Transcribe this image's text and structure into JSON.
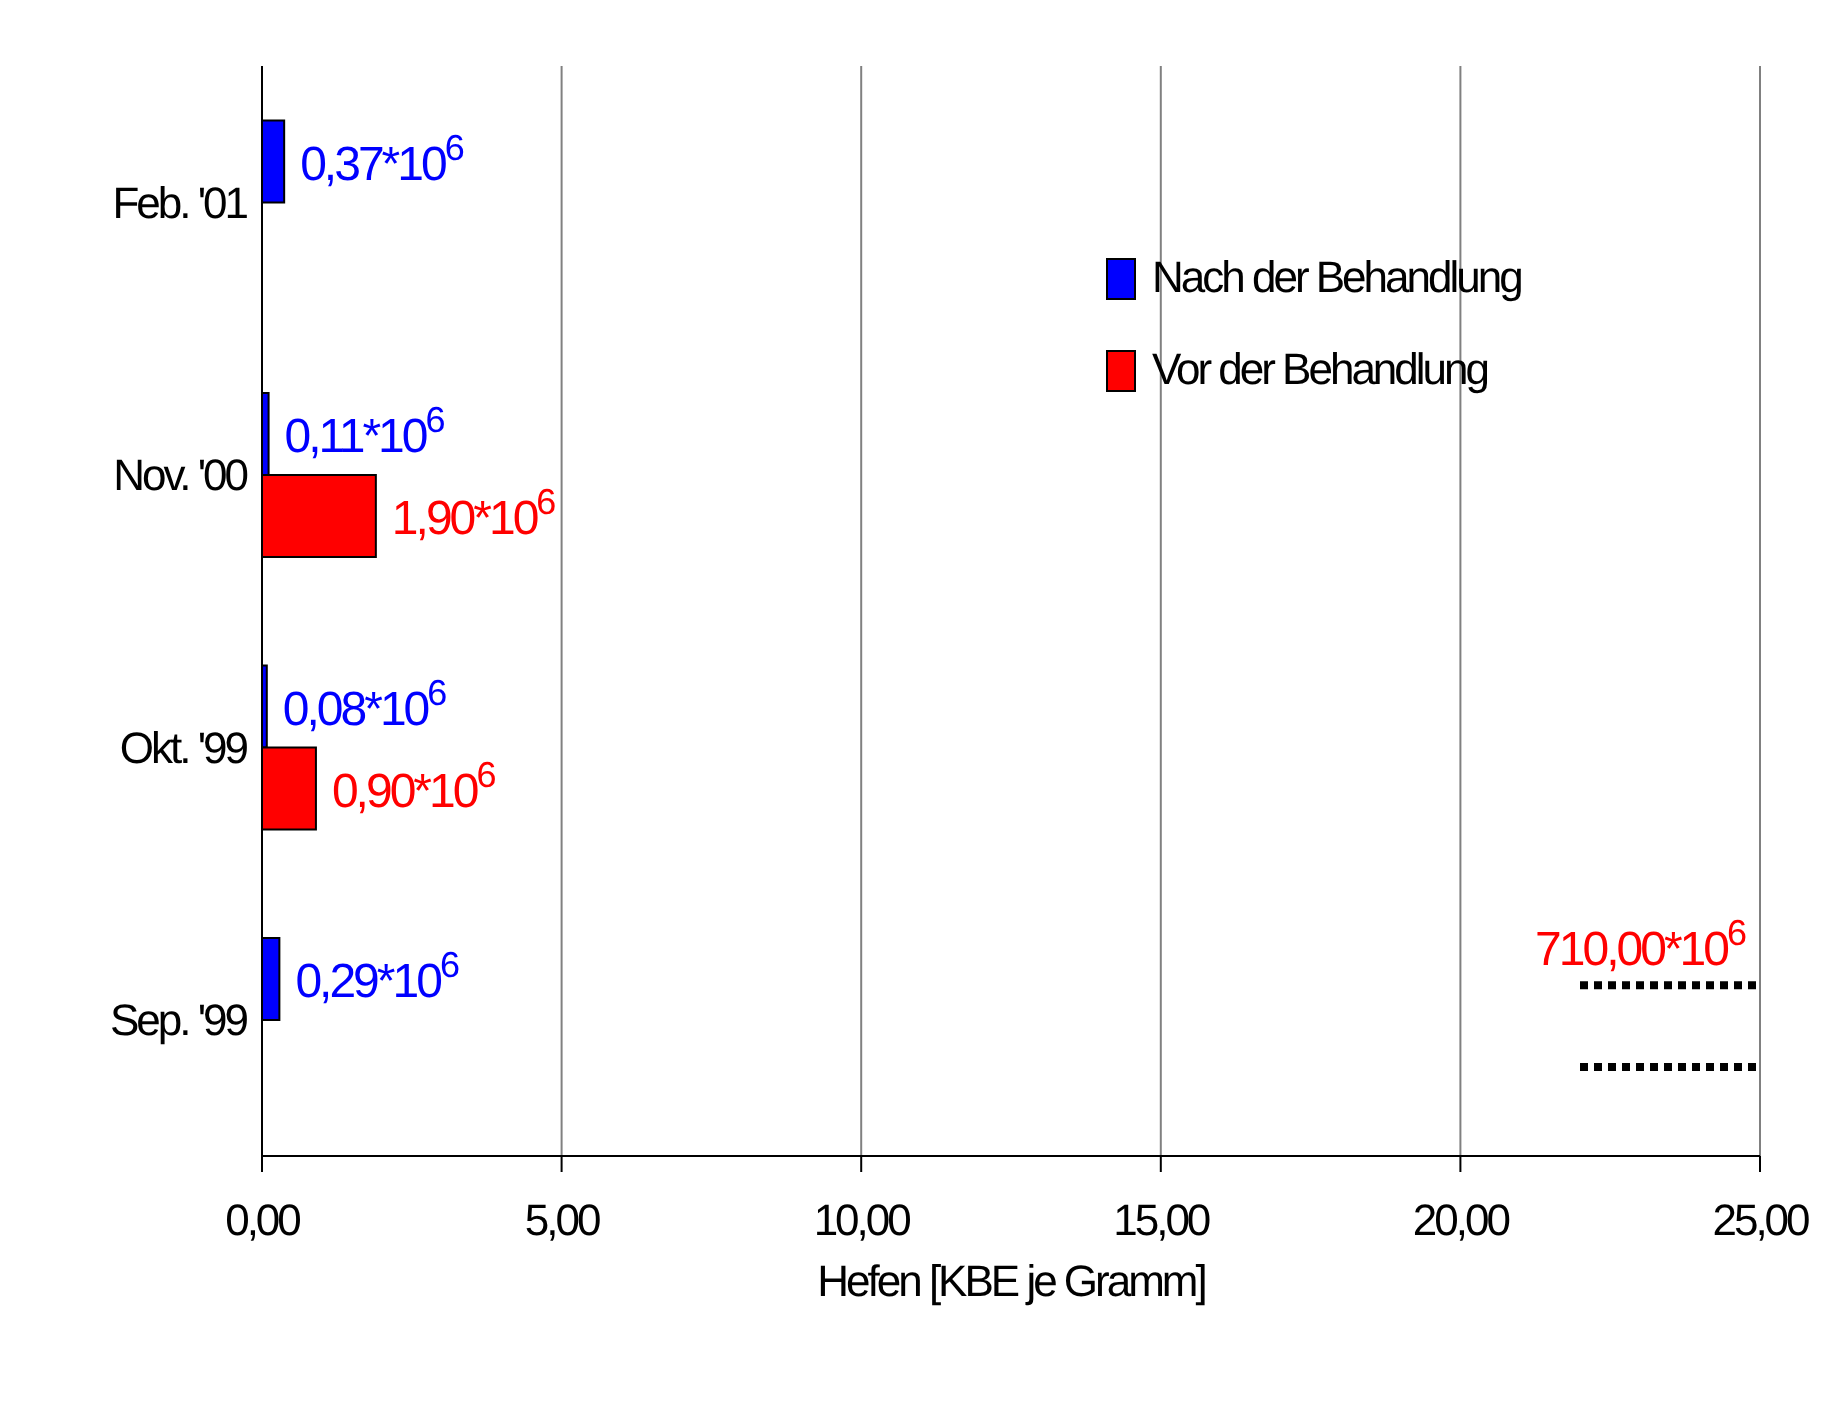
{
  "chart_data": {
    "type": "bar",
    "orientation": "horizontal",
    "categories": [
      "Feb. '01",
      "Nov. '00",
      "Okt. '99",
      "Sep. '99"
    ],
    "series": [
      {
        "name": "Nach der Behandlung",
        "color": "#0000ff",
        "values": [
          0.37,
          0.11,
          0.08,
          0.29
        ],
        "value_labels": [
          "0,37*10$^{6}$",
          "0,11*10$^{6}$",
          "0,08*10$^{6}$",
          "0,29*10$^{6}$"
        ]
      },
      {
        "name": "Vor der Behandlung",
        "color": "#ff0000",
        "values": [
          null,
          1.9,
          0.9,
          null
        ],
        "value_labels": [
          null,
          "1,90*10$^{6}$",
          "0,90*10$^{6}$",
          null
        ]
      }
    ],
    "xlabel": "Hefen [KBE je Gramm]",
    "xlim": [
      0,
      25
    ],
    "xticks": [
      {
        "value": 0,
        "label": "0,00"
      },
      {
        "value": 5,
        "label": "5,00"
      },
      {
        "value": 10,
        "label": "10,00"
      },
      {
        "value": 15,
        "label": "15,00"
      },
      {
        "value": 20,
        "label": "20,00"
      },
      {
        "value": 25,
        "label": "25,00"
      }
    ],
    "grid": "x",
    "legend": "top right",
    "annotations": [
      "710,00*10$^{6}$"
    ]
  }
}
